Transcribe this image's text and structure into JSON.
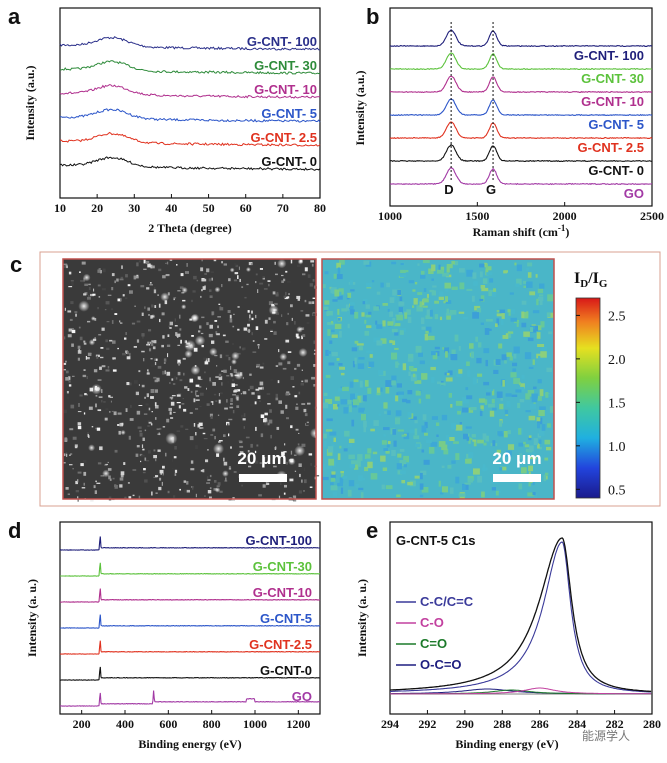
{
  "panels": {
    "a": "a",
    "b": "b",
    "c": "c",
    "d": "d",
    "e": "e"
  },
  "colors": {
    "c100": "#2a2f8a",
    "c30": "#2e8b3a",
    "c10": "#b0308e",
    "c5": "#2c56c9",
    "c2_5": "#e0321f",
    "c0": "#111111",
    "go": "#a23aa5",
    "lime": "#5cc23c",
    "navy": "#1f1f7a",
    "cc": "#3a3a9a",
    "co": "#c2409f",
    "ceqo": "#1c7a2a",
    "oco": "#1f1f80"
  },
  "chart_data": [
    {
      "id": "a",
      "type": "line",
      "title": "",
      "xlabel": "2 Theta (degree)",
      "ylabel": "Intensity (a.u.)",
      "xlim": [
        10,
        80
      ],
      "xticks": [
        10,
        20,
        30,
        40,
        50,
        60,
        70,
        80
      ],
      "peak_2theta": 24,
      "series": [
        {
          "name": "G-CNT- 100",
          "color_key": "c100",
          "offset": 6
        },
        {
          "name": "G-CNT- 30",
          "color_key": "c30",
          "offset": 5
        },
        {
          "name": "G-CNT- 10",
          "color_key": "c10",
          "offset": 4
        },
        {
          "name": "G-CNT- 5",
          "color_key": "c5",
          "offset": 3
        },
        {
          "name": "G-CNT- 2.5",
          "color_key": "c2_5",
          "offset": 2
        },
        {
          "name": "G-CNT- 0",
          "color_key": "c0",
          "offset": 1
        }
      ]
    },
    {
      "id": "b",
      "type": "line",
      "xlabel": "Raman shift (cm",
      "xlabel_sup": "-1",
      "xlabel_end": ")",
      "ylabel": "Intensity (a.u.)",
      "xlim": [
        1000,
        2500
      ],
      "xticks": [
        1000,
        1500,
        2000,
        2500
      ],
      "peaks": {
        "D": 1350,
        "G": 1590
      },
      "peak_labels": [
        "D",
        "G"
      ],
      "series": [
        {
          "name": "G-CNT- 100",
          "color_key": "navy",
          "offset": 7
        },
        {
          "name": "G-CNT- 30",
          "color_key": "lime",
          "offset": 6
        },
        {
          "name": "G-CNT- 10",
          "color_key": "c10",
          "offset": 5
        },
        {
          "name": "G-CNT- 5",
          "color_key": "c5",
          "offset": 4
        },
        {
          "name": "G-CNT- 2.5",
          "color_key": "c2_5",
          "offset": 3
        },
        {
          "name": "G-CNT- 0",
          "color_key": "c0",
          "offset": 2
        },
        {
          "name": "GO",
          "color_key": "go",
          "offset": 1
        }
      ]
    },
    {
      "id": "c",
      "type": "heatmap",
      "colorbar_title": "ID/IG",
      "colorbar_title_main": "I",
      "colorbar_sub1": "D",
      "colorbar_slash": "/I",
      "colorbar_sub2": "G",
      "colorbar_ticks": [
        2.5,
        2.0,
        1.5,
        1.0,
        0.5
      ],
      "clim": [
        0.4,
        2.7
      ],
      "scalebar_left": "20 μm",
      "scalebar_right": "20 μm"
    },
    {
      "id": "d",
      "type": "line",
      "xlabel": "Binding energy (eV)",
      "ylabel": "Intensity (a. u.)",
      "xlim": [
        100,
        1300
      ],
      "xticks": [
        200,
        400,
        600,
        800,
        1000,
        1200
      ],
      "peaks_eV": {
        "C1s": 284.8,
        "O1s": 532
      },
      "series": [
        {
          "name": "G-CNT-100",
          "color_key": "navy",
          "offset": 7
        },
        {
          "name": "G-CNT-30",
          "color_key": "lime",
          "offset": 6
        },
        {
          "name": "G-CNT-10",
          "color_key": "c10",
          "offset": 5
        },
        {
          "name": "G-CNT-5",
          "color_key": "c5",
          "offset": 4
        },
        {
          "name": "G-CNT-2.5",
          "color_key": "c2_5",
          "offset": 3
        },
        {
          "name": "G-CNT-0",
          "color_key": "c0",
          "offset": 2
        },
        {
          "name": "GO",
          "color_key": "go",
          "offset": 1
        }
      ]
    },
    {
      "id": "e",
      "type": "line",
      "title": "G-CNT-5  C1s",
      "xlabel": "Binding energy (eV)",
      "ylabel": "Intensity (a. u.)",
      "xlim": [
        294,
        280
      ],
      "xticks": [
        294,
        292,
        290,
        288,
        286,
        284,
        282,
        280
      ],
      "peak_center_eV": 284.8,
      "legend": [
        {
          "name": "C-C/C=C",
          "color_key": "cc"
        },
        {
          "name": "C-O",
          "color_key": "co"
        },
        {
          "name": "C=O",
          "color_key": "ceqo"
        },
        {
          "name": "O-C=O",
          "color_key": "oco"
        }
      ]
    }
  ],
  "watermark": "能源学人"
}
